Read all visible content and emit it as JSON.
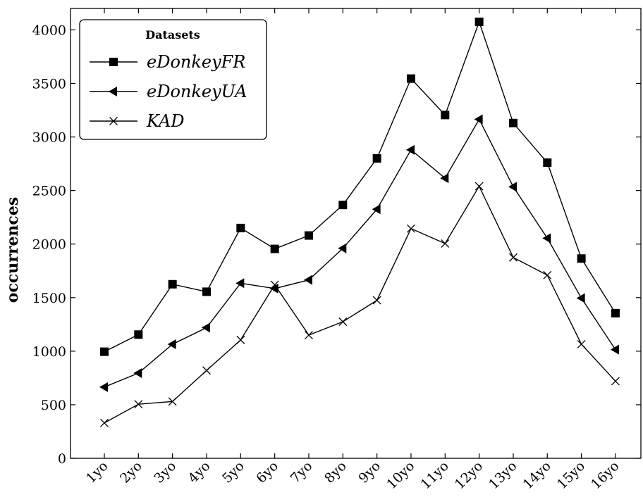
{
  "chart_data": {
    "type": "line",
    "title": "",
    "xlabel": "",
    "ylabel": "occurrences",
    "categories": [
      "1yo",
      "2yo",
      "3yo",
      "4yo",
      "5yo",
      "6yo",
      "7yo",
      "8yo",
      "9yo",
      "10yo",
      "11yo",
      "12yo",
      "13yo",
      "14yo",
      "15yo",
      "16yo"
    ],
    "ylim": [
      0,
      4200
    ],
    "yticks": [
      "0",
      "500",
      "1000",
      "1500",
      "2000",
      "2500",
      "3000",
      "3500",
      "4000"
    ],
    "grid": false,
    "legend": {
      "title": "Datasets",
      "placement": "top-left"
    },
    "series": [
      {
        "name": "eDonkeyFR",
        "marker": "square",
        "values": [
          995,
          1155,
          1625,
          1555,
          2150,
          1955,
          2080,
          2365,
          2800,
          3545,
          3205,
          4075,
          3130,
          2760,
          1865,
          1355
        ]
      },
      {
        "name": "eDonkeyUA",
        "marker": "triangle-left",
        "values": [
          665,
          795,
          1065,
          1220,
          1635,
          1585,
          1665,
          1960,
          2325,
          2880,
          2615,
          3165,
          2535,
          2055,
          1495,
          1015
        ]
      },
      {
        "name": "KAD",
        "marker": "x",
        "values": [
          330,
          505,
          530,
          820,
          1105,
          1620,
          1150,
          1275,
          1475,
          2145,
          2005,
          2540,
          1875,
          1710,
          1065,
          720
        ]
      }
    ]
  }
}
